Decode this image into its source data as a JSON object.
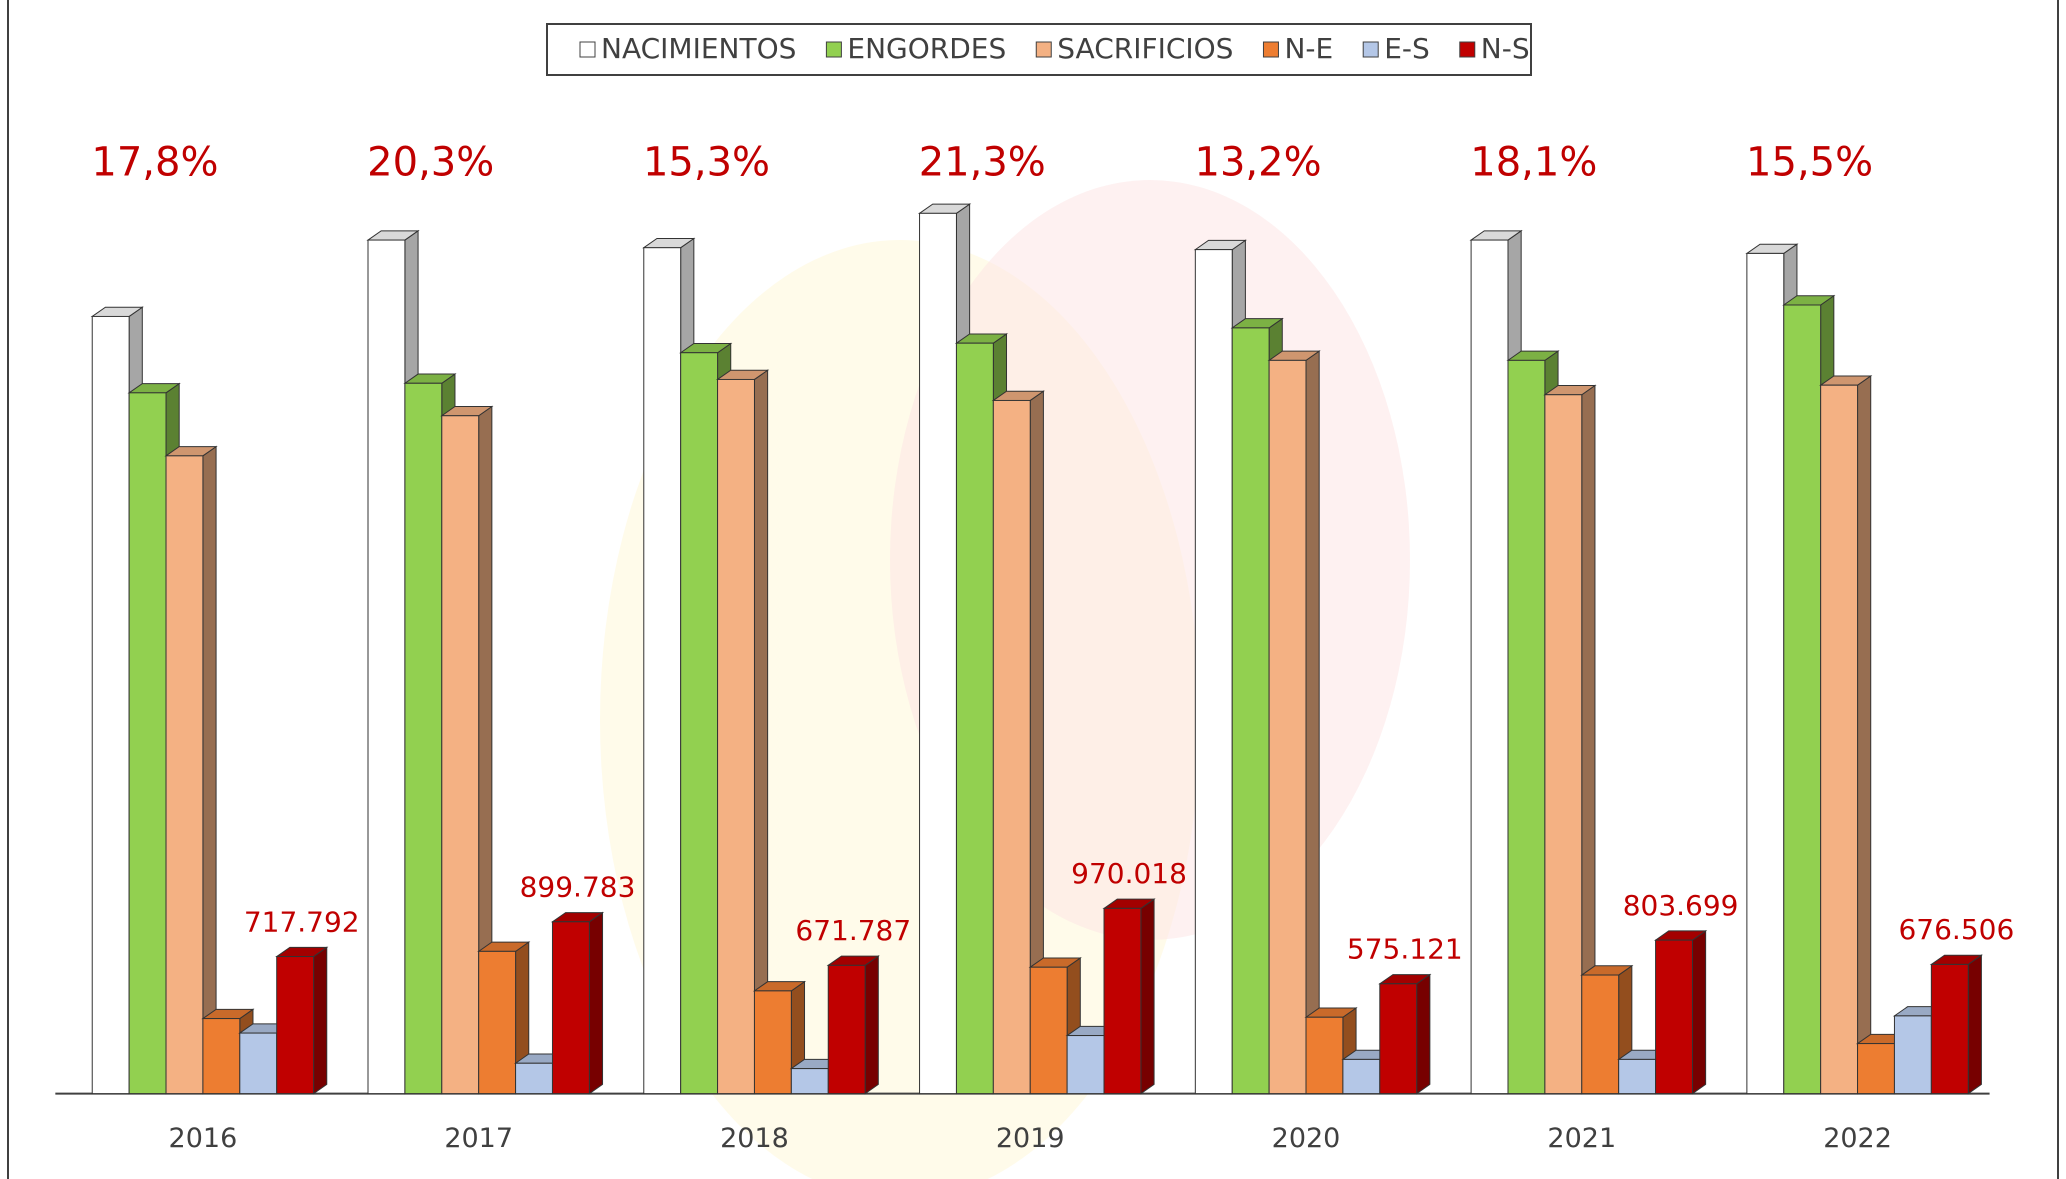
{
  "chart_data": {
    "type": "bar3d",
    "categories": [
      "2016",
      "2017",
      "2018",
      "2019",
      "2020",
      "2021",
      "2022"
    ],
    "annotations": [
      "17,8%",
      "20,3%",
      "15,3%",
      "21,3%",
      "13,2%",
      "18,1%",
      "15,5%"
    ],
    "series": [
      {
        "name": "NACIMIENTOS",
        "color": "#ffffff",
        "values": [
          4070000,
          4470000,
          4430000,
          4610000,
          4420000,
          4470000,
          4400000
        ]
      },
      {
        "name": "ENGORDES",
        "color": "#92d050",
        "values": [
          3670000,
          3720000,
          3880000,
          3930000,
          4010000,
          3840000,
          4130000
        ]
      },
      {
        "name": "SACRIFICIOS",
        "color": "#f4b183",
        "values": [
          3340000,
          3550000,
          3740000,
          3630000,
          3840000,
          3660000,
          3710000
        ]
      },
      {
        "name": "N-E",
        "color": "#ed7d31",
        "values": [
          393000,
          745000,
          538000,
          662000,
          400000,
          621000,
          262000
        ]
      },
      {
        "name": "E-S",
        "color": "#b4c7e7",
        "values": [
          317000,
          159000,
          131000,
          304000,
          179000,
          179000,
          407000
        ]
      },
      {
        "name": "N-S",
        "color": "#c00000",
        "values": [
          717792,
          899783,
          671787,
          970018,
          575121,
          803699,
          676506
        ],
        "value_labels": [
          "717.792",
          "899.783",
          "671.787",
          "970.018",
          "575.121",
          "803.699",
          "676.506"
        ]
      }
    ]
  }
}
